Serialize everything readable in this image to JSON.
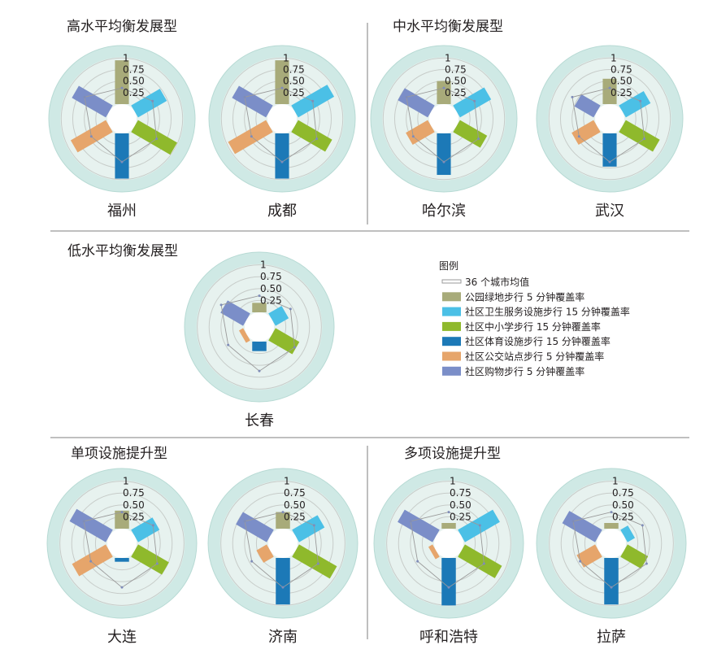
{
  "legend": {
    "title": "图例",
    "items": [
      {
        "label": "36 个城市均值",
        "color": "#9a9a9a",
        "kind": "line"
      },
      {
        "label": "公园绿地步行 5 分钟覆盖率",
        "color": "#a8ab7a",
        "kind": "box"
      },
      {
        "label": "社区卫生服务设施步行 15 分钟覆盖率",
        "color": "#4bc0e6",
        "kind": "box"
      },
      {
        "label": "社区中小学步行 15 分钟覆盖率",
        "color": "#8fb92c",
        "kind": "box"
      },
      {
        "label": "社区体育设施步行 15 分钟覆盖率",
        "color": "#1c79b7",
        "kind": "box"
      },
      {
        "label": "社区公交站点步行 5 分钟覆盖率",
        "color": "#e6a56b",
        "kind": "box"
      },
      {
        "label": "社区购物步行 5 分钟覆盖率",
        "color": "#7b8ec8",
        "kind": "box"
      }
    ]
  },
  "sections": [
    {
      "title": "高水平均衡发展型"
    },
    {
      "title": "中水平均衡发展型"
    },
    {
      "title": "低水平均衡发展型"
    },
    {
      "title": "单项设施提升型"
    },
    {
      "title": "多项设施提升型"
    }
  ],
  "ticks": [
    "1",
    "0.75",
    "0.50",
    "0.25"
  ],
  "chart_data": {
    "type": "radial-bar",
    "indicators": [
      "公园绿地步行 5 分钟覆盖率",
      "社区卫生服务设施步行 15 分钟覆盖率",
      "社区中小学步行 15 分钟覆盖率",
      "社区体育设施步行 15 分钟覆盖率",
      "社区公交站点步行 5 分钟覆盖率",
      "社区购物步行 5 分钟覆盖率"
    ],
    "rlim": [
      0,
      1
    ],
    "average": [
      0.35,
      0.45,
      0.55,
      0.62,
      0.45,
      0.62
    ],
    "cities": [
      {
        "name": "福州",
        "section": 0,
        "values": [
          0.95,
          0.72,
          0.98,
          0.98,
          0.88,
          0.85
        ]
      },
      {
        "name": "成都",
        "section": 0,
        "values": [
          0.95,
          0.9,
          0.85,
          0.98,
          0.95,
          0.85
        ]
      },
      {
        "name": "哈尔滨",
        "section": 1,
        "values": [
          0.5,
          0.78,
          0.68,
          0.9,
          0.55,
          0.75
        ]
      },
      {
        "name": "武汉",
        "section": 1,
        "values": [
          0.55,
          0.62,
          0.85,
          0.72,
          0.55,
          0.48
        ]
      },
      {
        "name": "长春",
        "section": 2,
        "values": [
          0.2,
          0.32,
          0.58,
          0.2,
          0.1,
          0.55
        ]
      },
      {
        "name": "大连",
        "section": 3,
        "values": [
          0.38,
          0.52,
          0.75,
          0.08,
          0.82,
          0.88
        ]
      },
      {
        "name": "济南",
        "section": 3,
        "values": [
          0.35,
          0.62,
          0.92,
          0.98,
          0.25,
          0.75
        ]
      },
      {
        "name": "呼和浩特",
        "section": 4,
        "values": [
          0.12,
          0.85,
          0.9,
          1.0,
          0.1,
          0.85
        ]
      },
      {
        "name": "拉萨",
        "section": 4,
        "values": [
          0.12,
          0.18,
          0.5,
          0.98,
          0.45,
          0.8
        ]
      }
    ]
  }
}
